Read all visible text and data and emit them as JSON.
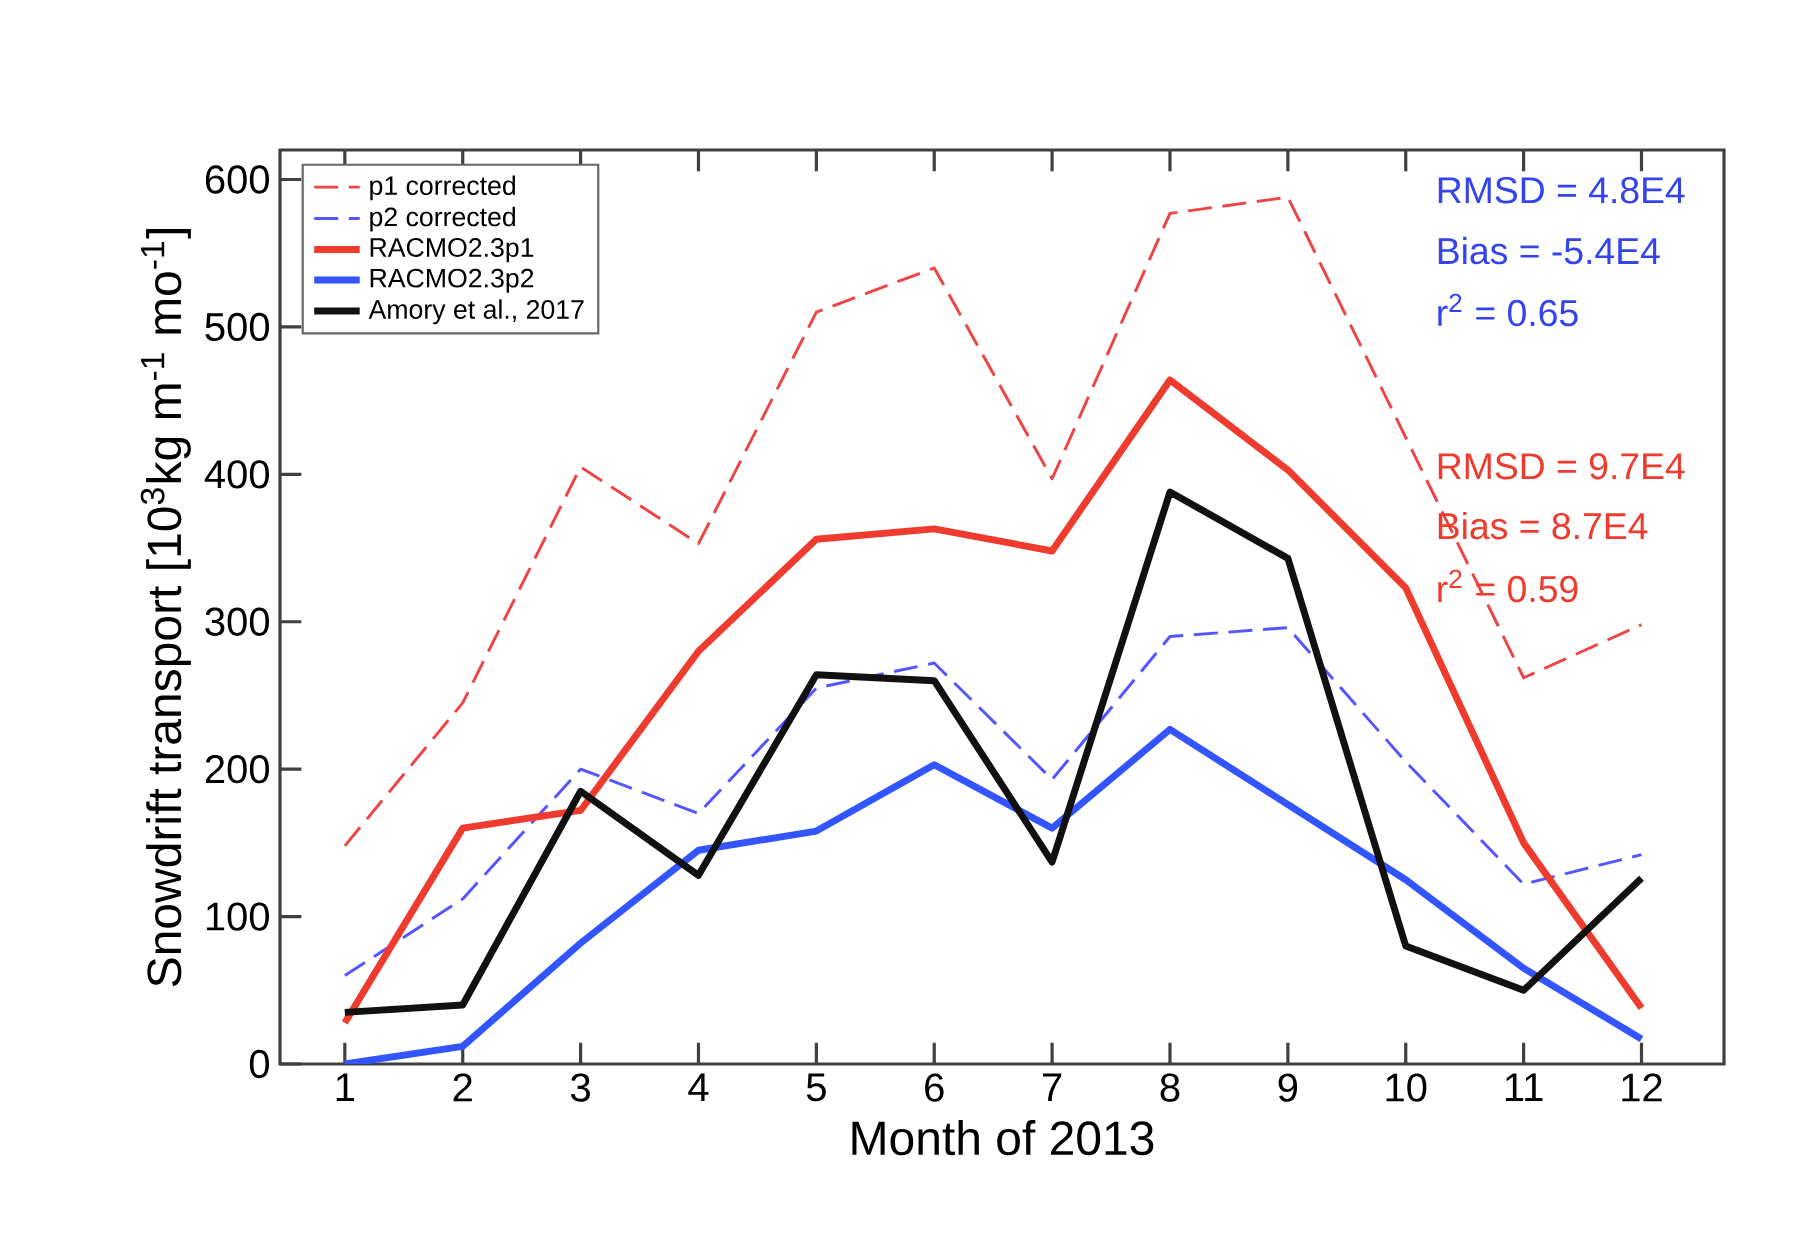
{
  "chart_data": {
    "type": "line",
    "xlabel": "Month of 2013",
    "ylabel": "Snowdrift transport [10$^{3}$kg m$^{-1}$ mo$^{-1}$]",
    "x": [
      1,
      2,
      3,
      4,
      5,
      6,
      7,
      8,
      9,
      10,
      11,
      12
    ],
    "xlim": [
      0.45,
      12.7
    ],
    "xticks": [
      1,
      2,
      3,
      4,
      5,
      6,
      7,
      8,
      9,
      10,
      11,
      12
    ],
    "ylim": [
      0,
      620
    ],
    "yticks": [
      0,
      100,
      200,
      300,
      400,
      500,
      600
    ],
    "legend": "top left",
    "series": [
      {
        "name": "p1 corrected",
        "color": "#ee4444",
        "line_style": "dashed",
        "values": [
          148,
          245,
          405,
          353,
          510,
          540,
          397,
          577,
          588,
          425,
          262,
          298
        ]
      },
      {
        "name": "p2 corrected",
        "color": "#5555ff",
        "line_style": "dashed",
        "values": [
          60,
          112,
          200,
          170,
          255,
          272,
          193,
          290,
          296,
          205,
          122,
          142
        ]
      },
      {
        "name": "RACMO2.3p1",
        "color": "#ee3b2e",
        "line_style": "solid",
        "values": [
          28,
          160,
          172,
          280,
          356,
          363,
          348,
          464,
          403,
          323,
          150,
          38
        ]
      },
      {
        "name": "RACMO2.3p2",
        "color": "#3355ff",
        "line_style": "solid",
        "values": [
          0,
          12,
          82,
          145,
          158,
          203,
          160,
          227,
          176,
          125,
          65,
          17
        ]
      },
      {
        "name": "Amory et al., 2017",
        "color": "#111111",
        "line_style": "solid",
        "values": [
          35,
          40,
          185,
          128,
          264,
          260,
          137,
          388,
          343,
          80,
          50,
          126
        ]
      }
    ],
    "annotations": [
      "RMSD = 4.8E4",
      "Bias = -5.4E4",
      "r$^{2}$ = 0.65",
      "RMSD = 9.7E4",
      "Bias = 8.7E4",
      "r$^{2}$ = 0.59"
    ]
  }
}
